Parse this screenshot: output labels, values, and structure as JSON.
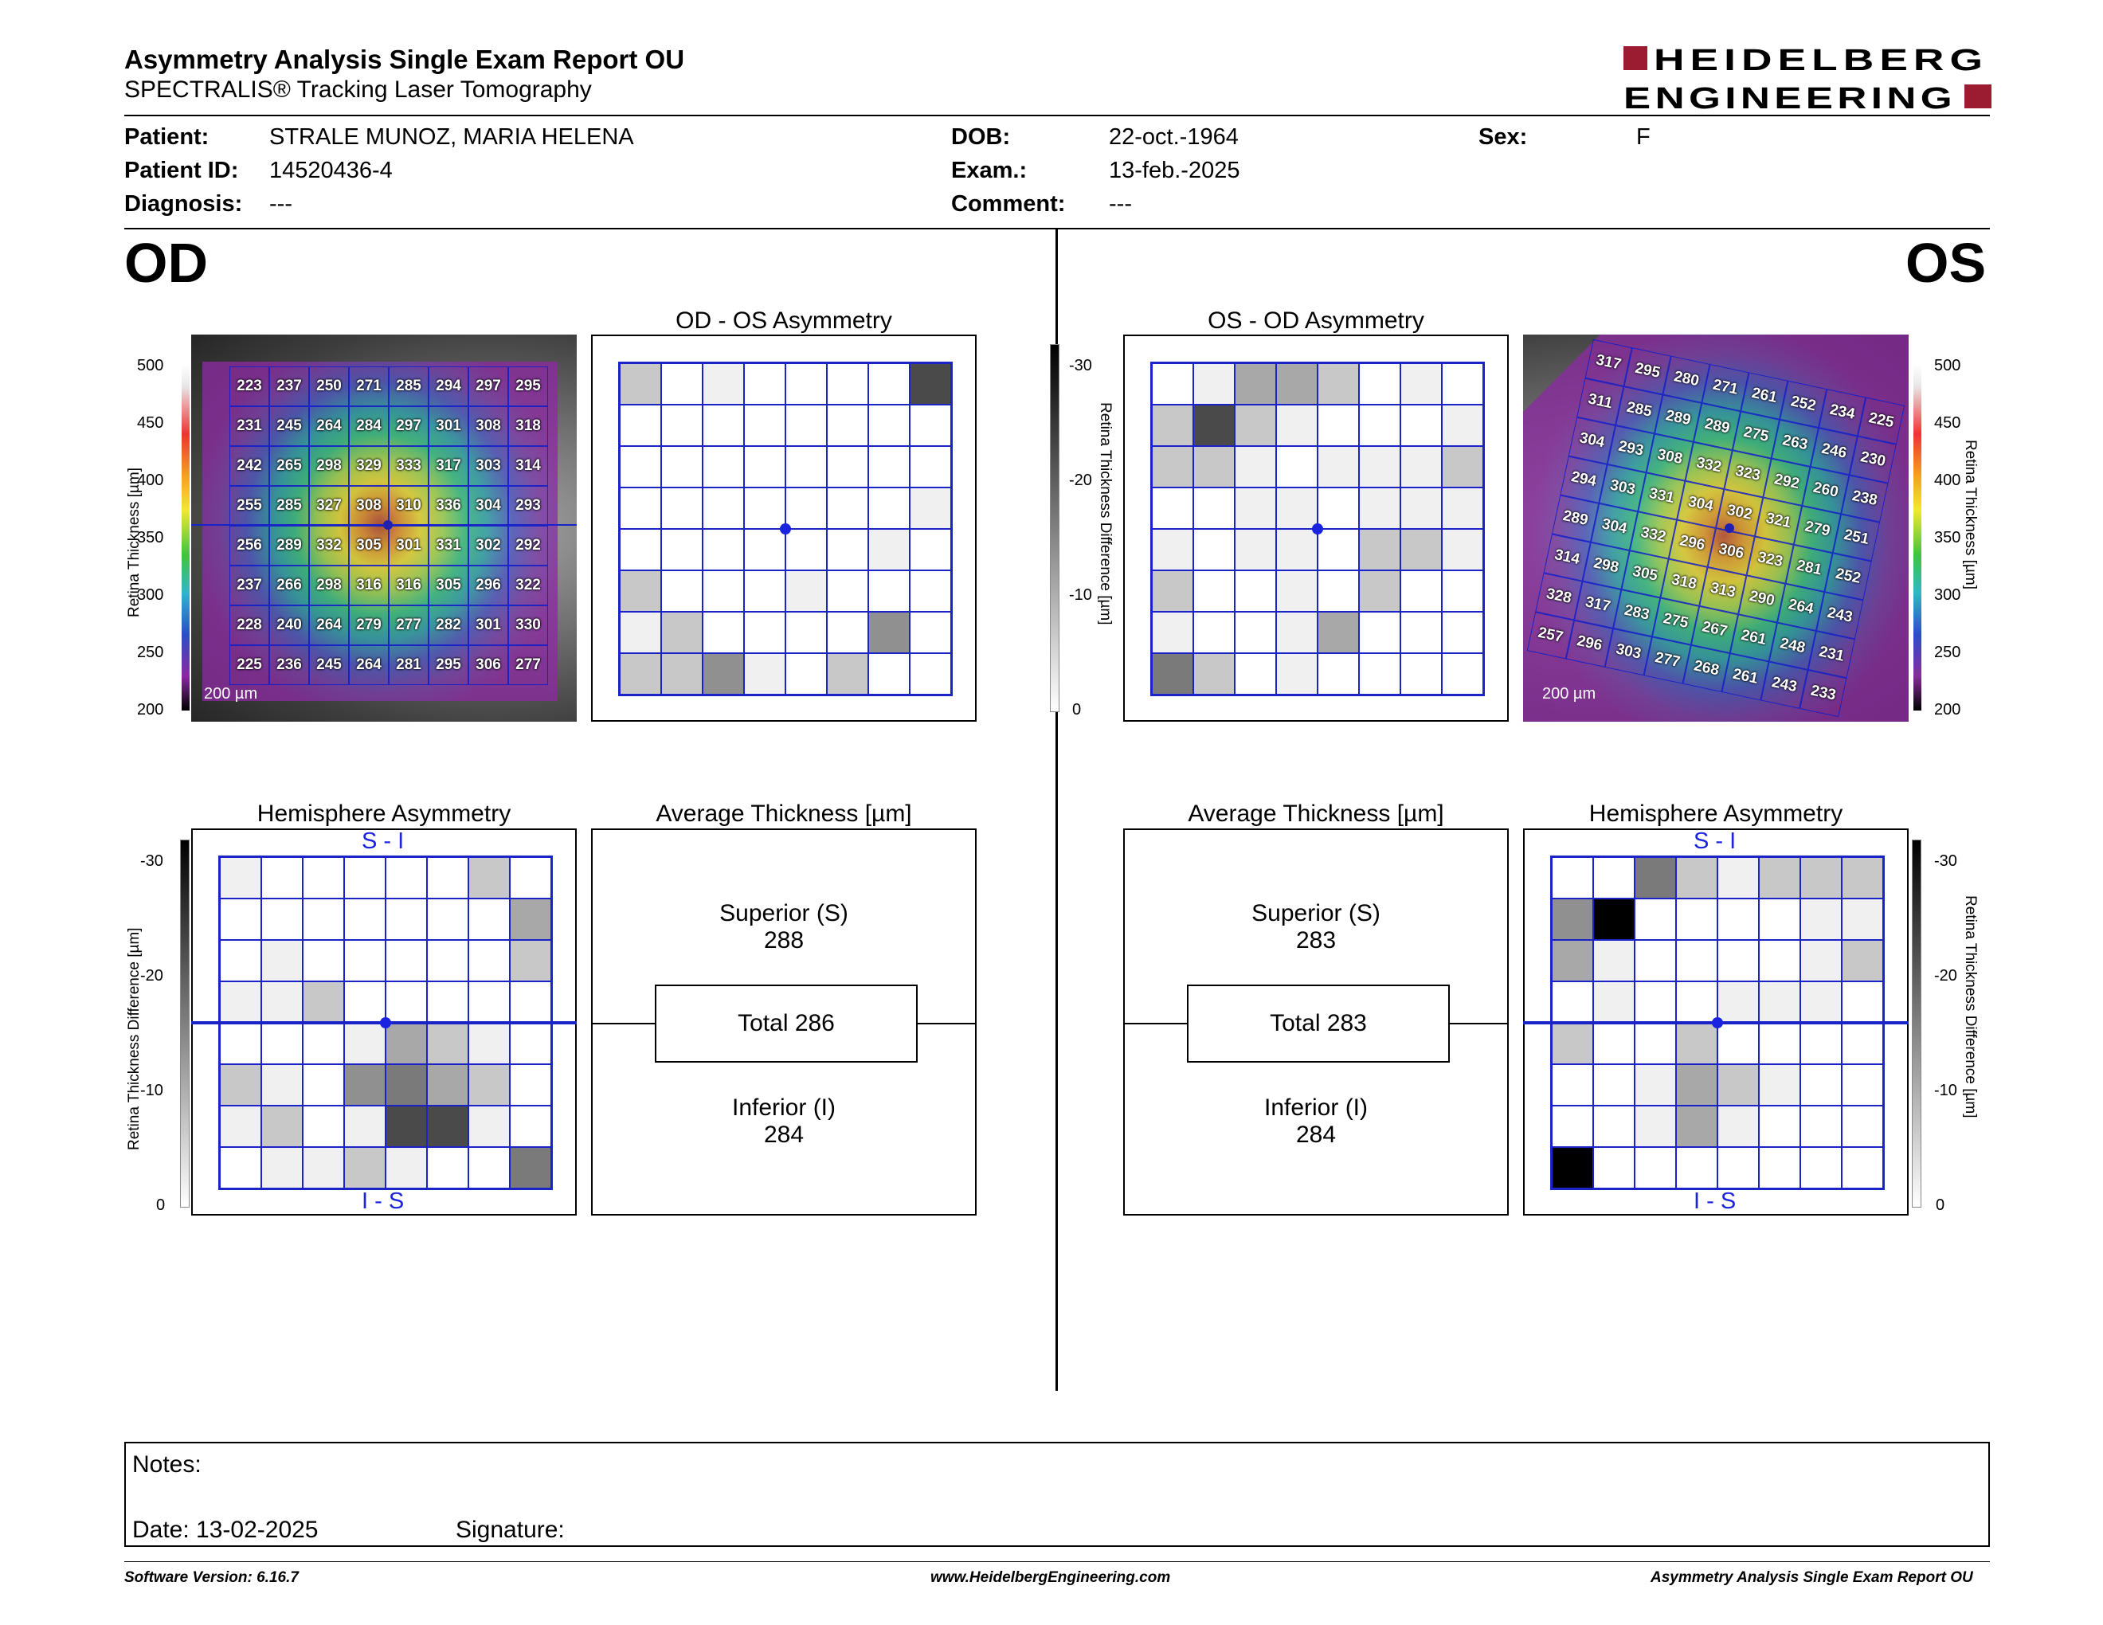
{
  "header": {
    "title": "Asymmetry Analysis Single Exam Report OU",
    "subtitle": "SPECTRALIS® Tracking Laser Tomography",
    "logo_line1": "HEIDELBERG",
    "logo_line2": "ENGINEERING"
  },
  "patient": {
    "patient_label": "Patient:",
    "patient_value": "STRALE MUNOZ, MARIA HELENA",
    "id_label": "Patient ID:",
    "id_value": "14520436-4",
    "diagnosis_label": "Diagnosis:",
    "diagnosis_value": "---",
    "dob_label": "DOB:",
    "dob_value": "22-oct.-1964",
    "exam_label": "Exam.:",
    "exam_value": "13-feb.-2025",
    "comment_label": "Comment:",
    "comment_value": "---",
    "sex_label": "Sex:",
    "sex_value": "F"
  },
  "od": {
    "eye_label": "OD",
    "asym_title": "OD - OS Asymmetry",
    "hemi_title": "Hemisphere Asymmetry",
    "avg_title": "Average Thickness [µm]",
    "scale": "200 µm",
    "hemi_top": "S - I",
    "hemi_bottom": "I - S",
    "superior_label": "Superior (S)",
    "superior_value": "288",
    "total_label": "Total 286",
    "inferior_label": "Inferior (I)",
    "inferior_value": "284",
    "thickness": [
      [
        "223",
        "237",
        "250",
        "271",
        "285",
        "294",
        "297",
        "295"
      ],
      [
        "231",
        "245",
        "264",
        "284",
        "297",
        "301",
        "308",
        "318"
      ],
      [
        "242",
        "265",
        "298",
        "329",
        "333",
        "317",
        "303",
        "314"
      ],
      [
        "255",
        "285",
        "327",
        "308",
        "310",
        "336",
        "304",
        "293"
      ],
      [
        "256",
        "289",
        "332",
        "305",
        "301",
        "331",
        "302",
        "292"
      ],
      [
        "237",
        "266",
        "298",
        "316",
        "316",
        "305",
        "296",
        "322"
      ],
      [
        "228",
        "240",
        "264",
        "279",
        "277",
        "282",
        "301",
        "330"
      ],
      [
        "225",
        "236",
        "245",
        "264",
        "281",
        "295",
        "306",
        "277"
      ]
    ],
    "asym_gray": [
      [
        2,
        0,
        1,
        0,
        0,
        0,
        0,
        6
      ],
      [
        0,
        0,
        0,
        0,
        0,
        0,
        0,
        0
      ],
      [
        0,
        0,
        0,
        0,
        0,
        0,
        0,
        0
      ],
      [
        0,
        0,
        0,
        0,
        0,
        0,
        0,
        1
      ],
      [
        0,
        0,
        0,
        0,
        0,
        0,
        1,
        0
      ],
      [
        2,
        0,
        0,
        0,
        1,
        0,
        0,
        0
      ],
      [
        1,
        2,
        0,
        0,
        0,
        0,
        4,
        0
      ],
      [
        2,
        2,
        4,
        1,
        0,
        2,
        0,
        0
      ]
    ],
    "hemi_gray": [
      [
        1,
        0,
        0,
        0,
        0,
        0,
        2,
        0
      ],
      [
        0,
        0,
        0,
        0,
        0,
        0,
        0,
        3
      ],
      [
        0,
        1,
        0,
        0,
        0,
        0,
        0,
        2
      ],
      [
        1,
        1,
        2,
        0,
        0,
        0,
        0,
        0
      ],
      [
        0,
        0,
        0,
        1,
        3,
        2,
        1,
        0
      ],
      [
        2,
        1,
        0,
        4,
        5,
        3,
        2,
        0
      ],
      [
        1,
        2,
        0,
        1,
        6,
        6,
        1,
        0
      ],
      [
        0,
        1,
        1,
        2,
        1,
        0,
        0,
        5
      ]
    ]
  },
  "os": {
    "eye_label": "OS",
    "asym_title": "OS - OD Asymmetry",
    "hemi_title": "Hemisphere Asymmetry",
    "avg_title": "Average Thickness [µm]",
    "scale": "200 µm",
    "hemi_top": "S - I",
    "hemi_bottom": "I - S",
    "superior_label": "Superior (S)",
    "superior_value": "283",
    "total_label": "Total 283",
    "inferior_label": "Inferior (I)",
    "inferior_value": "284",
    "thickness": [
      [
        "317",
        "295",
        "280",
        "271",
        "261",
        "252",
        "234",
        "225"
      ],
      [
        "311",
        "285",
        "289",
        "289",
        "275",
        "263",
        "246",
        "230"
      ],
      [
        "304",
        "293",
        "308",
        "332",
        "323",
        "292",
        "260",
        "238"
      ],
      [
        "294",
        "303",
        "331",
        "304",
        "302",
        "321",
        "279",
        "251"
      ],
      [
        "289",
        "304",
        "332",
        "296",
        "306",
        "323",
        "281",
        "252"
      ],
      [
        "314",
        "298",
        "305",
        "318",
        "313",
        "290",
        "264",
        "243"
      ],
      [
        "328",
        "317",
        "283",
        "275",
        "267",
        "261",
        "248",
        "231"
      ],
      [
        "257",
        "296",
        "303",
        "277",
        "268",
        "261",
        "243",
        "233"
      ]
    ],
    "asym_gray": [
      [
        0,
        1,
        3,
        3,
        2,
        0,
        1,
        0
      ],
      [
        2,
        6,
        2,
        1,
        0,
        0,
        0,
        1
      ],
      [
        2,
        2,
        1,
        0,
        1,
        1,
        1,
        2
      ],
      [
        0,
        0,
        1,
        1,
        0,
        1,
        1,
        1
      ],
      [
        1,
        0,
        1,
        1,
        0,
        2,
        2,
        1
      ],
      [
        2,
        0,
        0,
        1,
        0,
        2,
        0,
        0
      ],
      [
        1,
        0,
        0,
        1,
        3,
        0,
        0,
        0
      ],
      [
        5,
        2,
        0,
        1,
        0,
        0,
        0,
        0
      ]
    ],
    "hemi_gray": [
      [
        0,
        0,
        5,
        2,
        1,
        2,
        2,
        2
      ],
      [
        4,
        7,
        0,
        0,
        0,
        0,
        1,
        1
      ],
      [
        3,
        1,
        0,
        0,
        0,
        0,
        1,
        2
      ],
      [
        0,
        1,
        0,
        0,
        1,
        1,
        1,
        0
      ],
      [
        2,
        0,
        0,
        2,
        0,
        0,
        0,
        0
      ],
      [
        0,
        0,
        1,
        3,
        2,
        1,
        0,
        0
      ],
      [
        0,
        0,
        1,
        3,
        1,
        0,
        0,
        0
      ],
      [
        7,
        0,
        0,
        0,
        0,
        0,
        0,
        0
      ]
    ]
  },
  "scales": {
    "thickness_ticks": [
      "500",
      "450",
      "400",
      "350",
      "300",
      "250",
      "200"
    ],
    "thickness_axis": "Retina Thickness [µm]",
    "diff_ticks": [
      "-30",
      "-20",
      "-10",
      "0"
    ],
    "diff_axis": "Retina Thickness Difference [µm]"
  },
  "notes": {
    "notes_label": "Notes:",
    "date_label": "Date: 13-02-2025",
    "signature_label": "Signature:"
  },
  "footer": {
    "version": "Software Version: 6.16.7",
    "url": "www.HeidelbergEngineering.com",
    "report": "Asymmetry Analysis Single Exam Report OU"
  }
}
